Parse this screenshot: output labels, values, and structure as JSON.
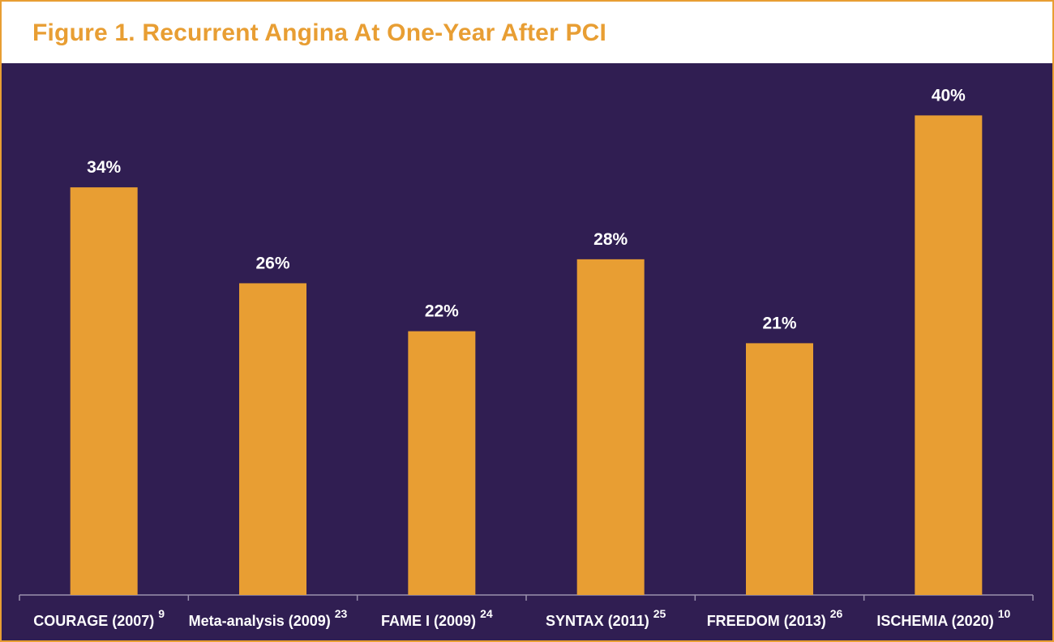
{
  "chart_data": {
    "type": "bar",
    "title": "Figure 1. Recurrent Angina At One-Year After PCI",
    "categories": [
      "COURAGE (2007)",
      "Meta-analysis (2009)",
      "FAME I (2009)",
      "SYNTAX (2011)",
      "FREEDOM (2013)",
      "ISCHEMIA (2020)"
    ],
    "references": [
      "9",
      "23",
      "24",
      "25",
      "26",
      "10"
    ],
    "values": [
      34,
      26,
      22,
      28,
      21,
      40
    ],
    "value_labels": [
      "34%",
      "26%",
      "22%",
      "28%",
      "21%",
      "40%"
    ],
    "xlabel": "",
    "ylabel": "",
    "ylim": [
      0,
      43
    ],
    "grid": false,
    "legend": "none"
  },
  "colors": {
    "bar": "#e89e33",
    "background": "#301e52",
    "title": "#e89e33",
    "axis": "#9a90ad",
    "text": "#ffffff"
  }
}
